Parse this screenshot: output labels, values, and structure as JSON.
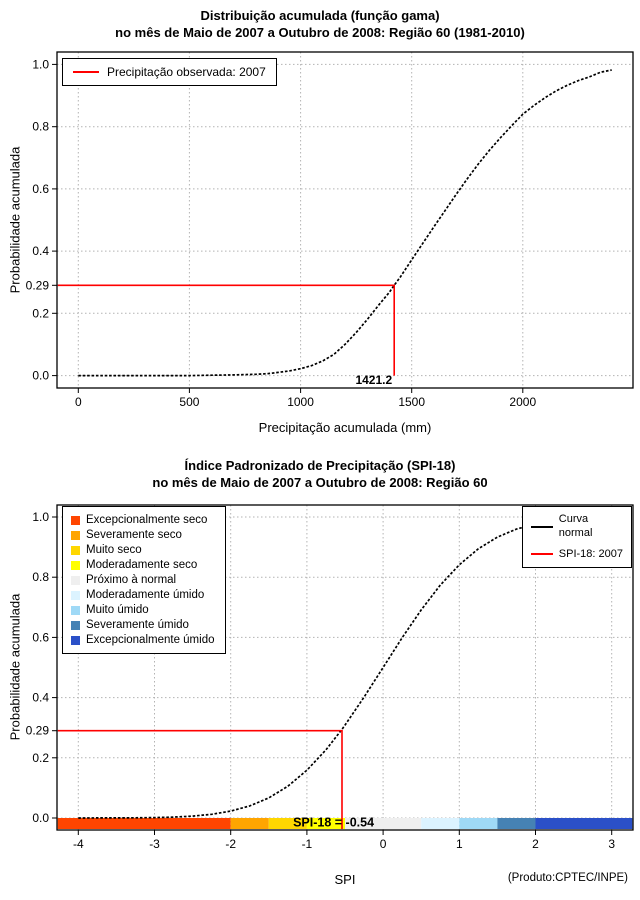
{
  "chart_data": [
    {
      "id": "gamma-cumulative",
      "type": "line",
      "title": "Distribuição acumulada (função gama)",
      "subtitle": "no mês de Maio de 2007 a Outubro de 2008: Região 60 (1981-2010)",
      "xlabel": "Precipitação acumulada (mm)",
      "ylabel": "Probabilidade acumulada",
      "xlim": [
        0,
        2400
      ],
      "ylim": [
        0,
        1
      ],
      "xticks": [
        0,
        500,
        1000,
        1500,
        2000
      ],
      "xtick_labels": [
        "0",
        "500",
        "1000",
        "1500",
        "2000"
      ],
      "yticks": [
        0,
        0.2,
        0.4,
        0.6,
        0.8,
        1
      ],
      "ytick_labels": [
        "0.0",
        "0.2",
        "0.4",
        "0.6",
        "0.8",
        "1.0"
      ],
      "grid": true,
      "legend": {
        "label": "Precipitação observada: 2007",
        "color": "#FF0000"
      },
      "series": [
        {
          "name": "Distribuição gama acumulada",
          "color": "#000000",
          "points": [
            [
              0,
              0.0
            ],
            [
              200,
              0.0
            ],
            [
              400,
              0.0
            ],
            [
              500,
              0.0
            ],
            [
              600,
              0.001
            ],
            [
              700,
              0.002
            ],
            [
              800,
              0.004
            ],
            [
              850,
              0.006
            ],
            [
              900,
              0.01
            ],
            [
              950,
              0.015
            ],
            [
              1000,
              0.022
            ],
            [
              1050,
              0.032
            ],
            [
              1100,
              0.047
            ],
            [
              1150,
              0.068
            ],
            [
              1200,
              0.1
            ],
            [
              1250,
              0.138
            ],
            [
              1300,
              0.18
            ],
            [
              1350,
              0.225
            ],
            [
              1400,
              0.268
            ],
            [
              1421.2,
              0.29
            ],
            [
              1450,
              0.318
            ],
            [
              1500,
              0.372
            ],
            [
              1550,
              0.425
            ],
            [
              1600,
              0.478
            ],
            [
              1650,
              0.53
            ],
            [
              1700,
              0.582
            ],
            [
              1750,
              0.632
            ],
            [
              1800,
              0.68
            ],
            [
              1850,
              0.724
            ],
            [
              1900,
              0.765
            ],
            [
              1950,
              0.803
            ],
            [
              2000,
              0.84
            ],
            [
              2050,
              0.868
            ],
            [
              2100,
              0.893
            ],
            [
              2150,
              0.915
            ],
            [
              2200,
              0.933
            ],
            [
              2250,
              0.948
            ],
            [
              2300,
              0.96
            ],
            [
              2350,
              0.975
            ],
            [
              2400,
              0.982
            ]
          ]
        }
      ],
      "crosshair": {
        "x": 1421.2,
        "y": 0.29,
        "x_label": "1421.2",
        "y_label": "0.29",
        "color": "#FF0000",
        "drop": "zero"
      }
    },
    {
      "id": "spi18-cumulative",
      "type": "line",
      "title": "Índice Padronizado de Precipitação (SPI-18)",
      "subtitle": "no mês de Maio de 2007 a Outubro de 2008: Região 60",
      "xlabel": "SPI",
      "ylabel": "Probabilidade acumulada",
      "xlim": [
        -4,
        3
      ],
      "ylim": [
        0,
        1
      ],
      "xticks": [
        -4,
        -3,
        -2,
        -1,
        0,
        1,
        2,
        3
      ],
      "xtick_labels": [
        "-4",
        "-3",
        "-2",
        "-1",
        "0",
        "1",
        "2",
        "3"
      ],
      "yticks": [
        0,
        0.2,
        0.4,
        0.6,
        0.8,
        1
      ],
      "ytick_labels": [
        "0.0",
        "0.2",
        "0.4",
        "0.6",
        "0.8",
        "1.0"
      ],
      "grid": true,
      "series": [
        {
          "name": "Curva normal",
          "color": "#000000",
          "points": [
            [
              -4,
              0.0
            ],
            [
              -3.75,
              0.0001
            ],
            [
              -3.5,
              0.0002
            ],
            [
              -3.25,
              0.0006
            ],
            [
              -3,
              0.0013
            ],
            [
              -2.75,
              0.003
            ],
            [
              -2.5,
              0.0062
            ],
            [
              -2.25,
              0.0122
            ],
            [
              -2,
              0.0228
            ],
            [
              -1.75,
              0.0401
            ],
            [
              -1.5,
              0.0668
            ],
            [
              -1.25,
              0.1056
            ],
            [
              -1,
              0.1587
            ],
            [
              -0.75,
              0.2266
            ],
            [
              -0.54,
              0.2946
            ],
            [
              -0.5,
              0.3085
            ],
            [
              -0.25,
              0.4013
            ],
            [
              0,
              0.5
            ],
            [
              0.25,
              0.5987
            ],
            [
              0.5,
              0.6915
            ],
            [
              0.75,
              0.7734
            ],
            [
              1,
              0.8413
            ],
            [
              1.25,
              0.8944
            ],
            [
              1.5,
              0.9332
            ],
            [
              1.75,
              0.9599
            ],
            [
              2,
              0.9772
            ],
            [
              2.25,
              0.9878
            ],
            [
              2.5,
              0.9938
            ],
            [
              2.75,
              0.997
            ],
            [
              3,
              0.9987
            ]
          ]
        }
      ],
      "line_legend": [
        {
          "label": "Curva normal",
          "color": "#000000",
          "two_line": true
        },
        {
          "label": "SPI-18: 2007",
          "color": "#FF0000",
          "two_line": false
        }
      ],
      "category_bar": [
        {
          "label": "Excepcionalmente seco",
          "color": "#FF4500",
          "range": [
            -4,
            -2
          ]
        },
        {
          "label": "Severamente seco",
          "color": "#FFA500",
          "range": [
            -2,
            -1.5
          ]
        },
        {
          "label": "Muito seco",
          "color": "#FFD700",
          "range": [
            -1.5,
            -1
          ]
        },
        {
          "label": "Moderadamente seco",
          "color": "#FFFF00",
          "range": [
            -1,
            -0.5
          ]
        },
        {
          "label": "Próximo à normal",
          "color": "#EFEFEF",
          "range": [
            -0.5,
            0.5
          ]
        },
        {
          "label": "Moderadamente úmido",
          "color": "#DCF3FF",
          "range": [
            0.5,
            1
          ]
        },
        {
          "label": "Muito úmido",
          "color": "#9FD9F6",
          "range": [
            1,
            1.5
          ]
        },
        {
          "label": "Severamente úmido",
          "color": "#4682B4",
          "range": [
            1.5,
            2
          ]
        },
        {
          "label": "Excepcionalmente úmido",
          "color": "#2B50C8",
          "range": [
            2,
            3
          ]
        }
      ],
      "crosshair": {
        "x": -0.54,
        "y": 0.29,
        "y_label": "0.29",
        "color": "#FF0000",
        "drop": "bottom"
      },
      "bar_label": {
        "text": "SPI-18 = -0.54",
        "x": -0.65
      }
    }
  ],
  "footer": {
    "product_note": "(Produto:CPTEC/INPE)"
  }
}
